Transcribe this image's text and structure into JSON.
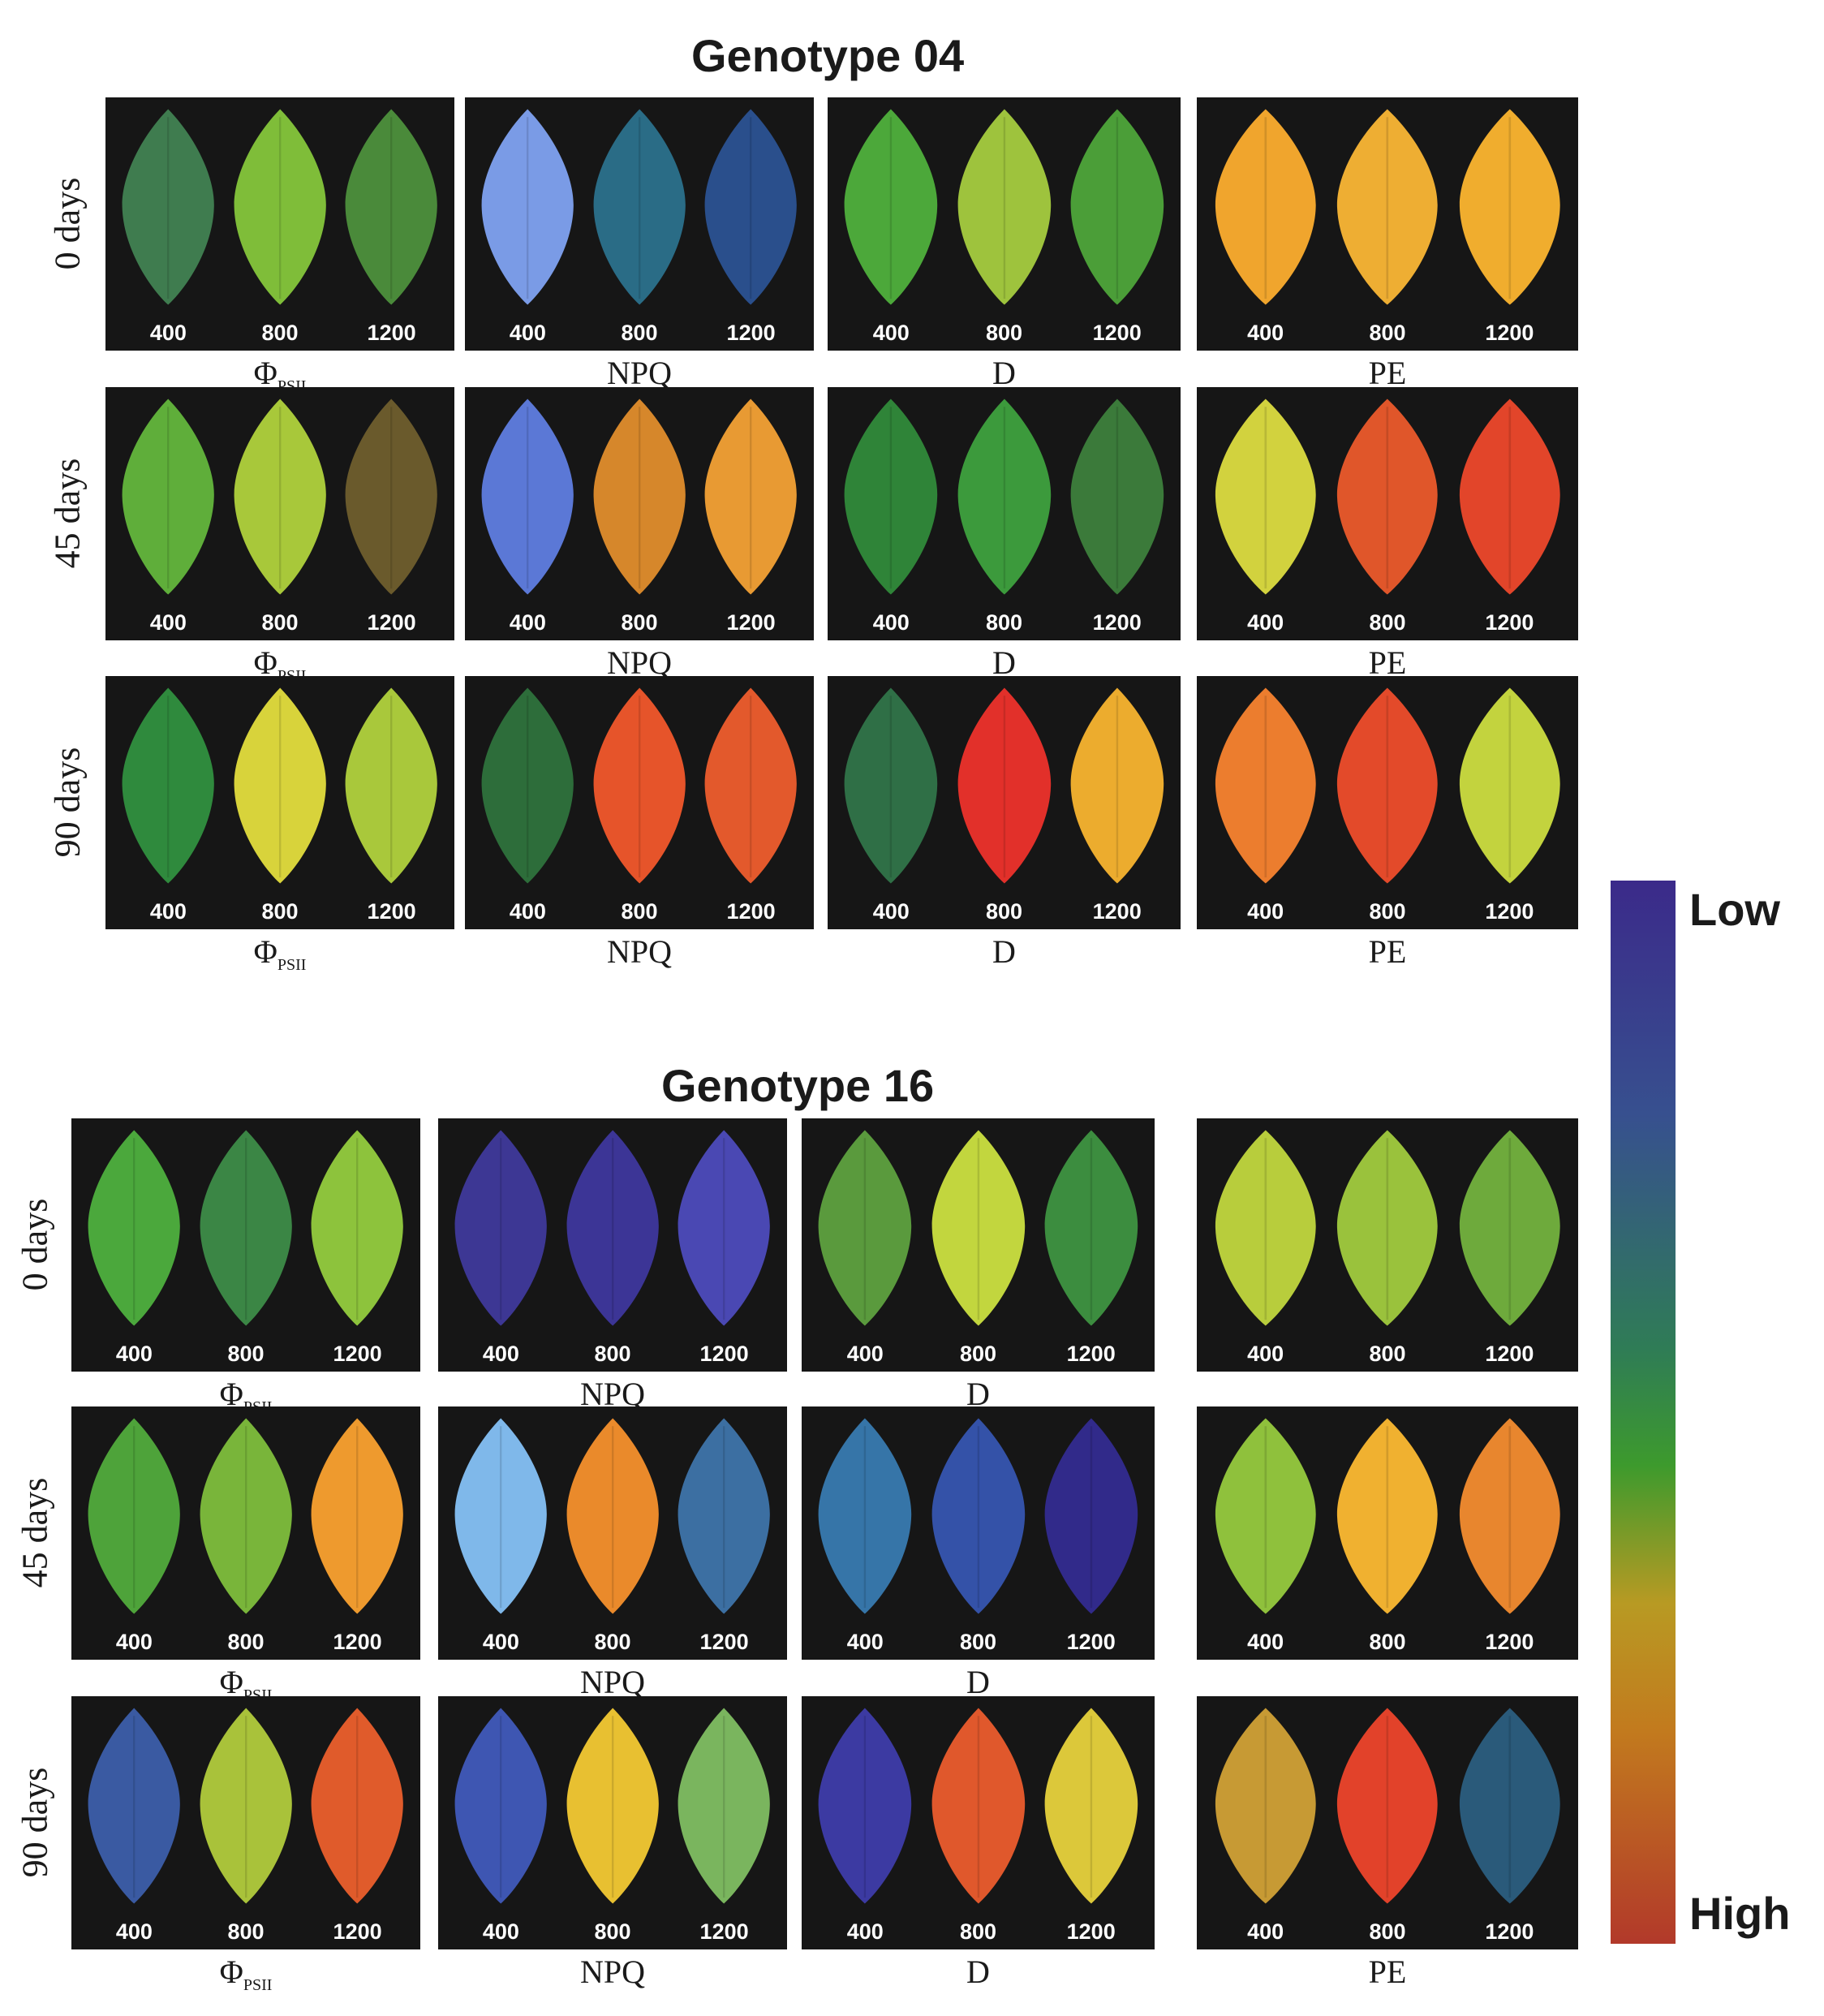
{
  "groups": [
    {
      "title": "Genotype 04",
      "rows": [
        {
          "label": "0 days",
          "params": [
            "ΦPSII",
            "NPQ",
            "D",
            "PE"
          ],
          "panels": [
            [
              "#3f7c4f",
              "#7fbd39",
              "#4a8a3a"
            ],
            [
              "#7a9be6",
              "#2a6c86",
              "#2a4f8c"
            ],
            [
              "#4ca83a",
              "#9ec33d",
              "#4b9e38"
            ],
            [
              "#f0a52d",
              "#eeae33",
              "#f0ad2e"
            ]
          ]
        },
        {
          "label": "45 days",
          "params": [
            "ΦPSII",
            "NPQ",
            "D",
            "PE"
          ],
          "panels": [
            [
              "#5fae3a",
              "#a8c83a",
              "#6a5a2c"
            ],
            [
              "#5b78d6",
              "#d6872b",
              "#e89a33"
            ],
            [
              "#2f8438",
              "#3c9a3c",
              "#3b7a3a"
            ],
            [
              "#d2d23e",
              "#e0562a",
              "#e2452a"
            ]
          ]
        },
        {
          "label": "90 days",
          "params": [
            "ΦPSII",
            "NPQ",
            "D",
            "PE"
          ],
          "panels": [
            [
              "#2f8a3d",
              "#d8d33b",
              "#a9c83b"
            ],
            [
              "#2d6d3a",
              "#e6542a",
              "#e3592c"
            ],
            [
              "#2f6f46",
              "#e2302a",
              "#ecac2e"
            ],
            [
              "#ec7d2e",
              "#e34a2a",
              "#c3d33e"
            ]
          ]
        }
      ]
    },
    {
      "title": "Genotype 16",
      "rows": [
        {
          "label": "0 days",
          "params": [
            "ΦPSII",
            "NPQ",
            "D",
            ""
          ],
          "panels": [
            [
              "#4ba83c",
              "#3b8645",
              "#8dc33c"
            ],
            [
              "#3d3794",
              "#3c3596",
              "#4a48b3"
            ],
            [
              "#5a9a3d",
              "#c2d63e",
              "#3c8d3f"
            ],
            [
              "#b8cd3c",
              "#9ac23c",
              "#6eaa3c"
            ]
          ]
        },
        {
          "label": "45 days",
          "params": [
            "ΦPSII",
            "NPQ",
            "D",
            ""
          ],
          "panels": [
            [
              "#4ea33a",
              "#79b53a",
              "#ee9a2e"
            ],
            [
              "#7fb8ea",
              "#ea8a2b",
              "#3c6fa2"
            ],
            [
              "#3675a8",
              "#3452a8",
              "#312a8a"
            ],
            [
              "#8fc13c",
              "#f0b130",
              "#e8862e"
            ]
          ]
        },
        {
          "label": "90 days",
          "params": [
            "ΦPSII",
            "NPQ",
            "D",
            "PE"
          ],
          "panels": [
            [
              "#3a5aa2",
              "#a9c23a",
              "#e05b2b"
            ],
            [
              "#3e56b2",
              "#e8c031",
              "#7ab55e"
            ],
            [
              "#3c3aa2",
              "#e0582c",
              "#dcc83a"
            ],
            [
              "#c79a34",
              "#e2422a",
              "#2a5a7a"
            ]
          ]
        }
      ]
    }
  ],
  "leaf_labels": [
    "400",
    "800",
    "1200"
  ],
  "colorbar": {
    "low": "Low",
    "high": "High"
  }
}
